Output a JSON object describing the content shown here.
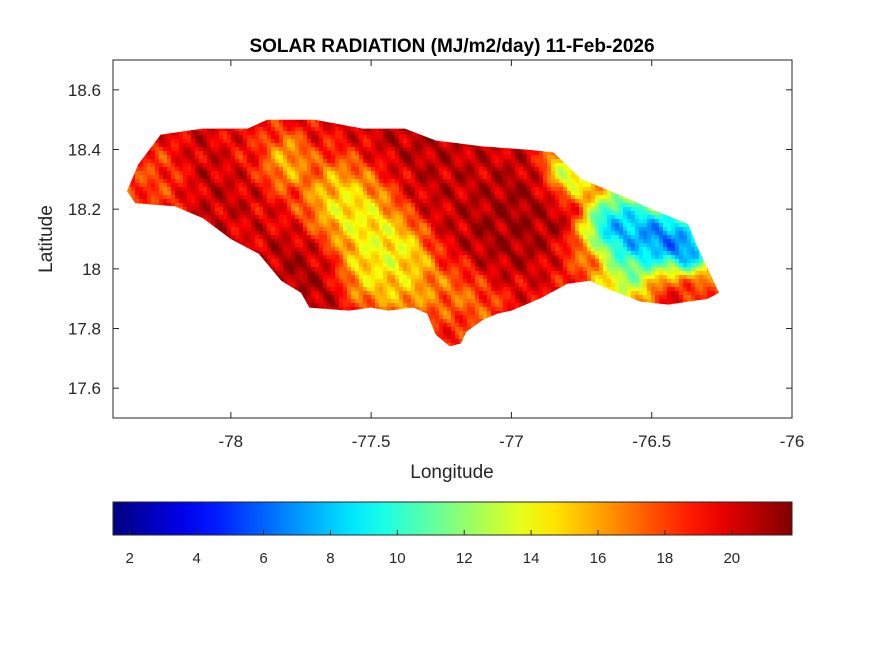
{
  "chart_data": {
    "type": "heatmap",
    "title": "SOLAR RADIATION (MJ/m2/day) 11-Feb-2026",
    "xlabel": "Longitude",
    "ylabel": "Latitude",
    "xlim": [
      -78.42,
      -76.0
    ],
    "ylim": [
      17.5,
      18.7
    ],
    "xticks": [
      -78,
      -77.5,
      -77,
      -76.5,
      -76
    ],
    "yticks": [
      17.6,
      17.8,
      18,
      18.2,
      18.4,
      18.6
    ],
    "colorbar": {
      "colormap": "jet",
      "range": [
        1.5,
        21.8
      ],
      "ticks": [
        2,
        4,
        6,
        8,
        10,
        12,
        14,
        16,
        18,
        20
      ],
      "location": "south"
    },
    "grid": false,
    "region_outline": [
      [
        -78.37,
        18.26
      ],
      [
        -78.33,
        18.35
      ],
      [
        -78.25,
        18.45
      ],
      [
        -78.1,
        18.47
      ],
      [
        -77.94,
        18.47
      ],
      [
        -77.87,
        18.5
      ],
      [
        -77.7,
        18.5
      ],
      [
        -77.53,
        18.47
      ],
      [
        -77.38,
        18.47
      ],
      [
        -77.27,
        18.43
      ],
      [
        -77.1,
        18.41
      ],
      [
        -76.95,
        18.4
      ],
      [
        -76.85,
        18.39
      ],
      [
        -76.75,
        18.3
      ],
      [
        -76.62,
        18.25
      ],
      [
        -76.5,
        18.2
      ],
      [
        -76.37,
        18.15
      ],
      [
        -76.34,
        18.08
      ],
      [
        -76.31,
        18.02
      ],
      [
        -76.26,
        17.92
      ],
      [
        -76.3,
        17.9
      ],
      [
        -76.44,
        17.88
      ],
      [
        -76.54,
        17.89
      ],
      [
        -76.65,
        17.93
      ],
      [
        -76.72,
        17.96
      ],
      [
        -76.8,
        17.95
      ],
      [
        -76.9,
        17.9
      ],
      [
        -77.0,
        17.86
      ],
      [
        -77.05,
        17.85
      ],
      [
        -77.1,
        17.83
      ],
      [
        -77.16,
        17.79
      ],
      [
        -77.18,
        17.75
      ],
      [
        -77.22,
        17.74
      ],
      [
        -77.27,
        17.78
      ],
      [
        -77.3,
        17.85
      ],
      [
        -77.35,
        17.87
      ],
      [
        -77.44,
        17.86
      ],
      [
        -77.5,
        17.87
      ],
      [
        -77.58,
        17.86
      ],
      [
        -77.72,
        17.87
      ],
      [
        -77.75,
        17.92
      ],
      [
        -77.82,
        17.96
      ],
      [
        -77.9,
        18.05
      ],
      [
        -78.0,
        18.1
      ],
      [
        -78.1,
        18.17
      ],
      [
        -78.2,
        18.21
      ],
      [
        -78.34,
        18.22
      ]
    ],
    "value_features": [
      {
        "lon": -77.72,
        "lat": 18.0,
        "value": 21.5,
        "spread": 0.09
      },
      {
        "lon": -78.05,
        "lat": 18.32,
        "value": 20.8,
        "spread": 0.1
      },
      {
        "lon": -77.95,
        "lat": 18.4,
        "value": 18.5,
        "spread": 0.07
      },
      {
        "lon": -77.35,
        "lat": 18.38,
        "value": 21.0,
        "spread": 0.12
      },
      {
        "lon": -77.2,
        "lat": 18.3,
        "value": 20.5,
        "spread": 0.1
      },
      {
        "lon": -77.0,
        "lat": 18.18,
        "value": 21.6,
        "spread": 0.09
      },
      {
        "lon": -77.1,
        "lat": 18.05,
        "value": 21.4,
        "spread": 0.08
      },
      {
        "lon": -76.88,
        "lat": 18.22,
        "value": 21.0,
        "spread": 0.07
      },
      {
        "lon": -77.55,
        "lat": 18.18,
        "value": 12.5,
        "spread": 0.1
      },
      {
        "lon": -77.42,
        "lat": 18.05,
        "value": 13.0,
        "spread": 0.07
      },
      {
        "lon": -77.52,
        "lat": 18.0,
        "value": 14.0,
        "spread": 0.06
      },
      {
        "lon": -77.38,
        "lat": 17.95,
        "value": 15.0,
        "spread": 0.06
      },
      {
        "lon": -77.18,
        "lat": 17.92,
        "value": 16.0,
        "spread": 0.08
      },
      {
        "lon": -77.2,
        "lat": 17.8,
        "value": 19.0,
        "spread": 0.05
      },
      {
        "lon": -77.82,
        "lat": 18.36,
        "value": 14.5,
        "spread": 0.05
      },
      {
        "lon": -78.25,
        "lat": 18.3,
        "value": 17.5,
        "spread": 0.07
      },
      {
        "lon": -76.8,
        "lat": 18.31,
        "value": 10.0,
        "spread": 0.05
      },
      {
        "lon": -76.62,
        "lat": 18.12,
        "value": 5.0,
        "spread": 0.07
      },
      {
        "lon": -76.48,
        "lat": 18.09,
        "value": 3.5,
        "spread": 0.06
      },
      {
        "lon": -76.38,
        "lat": 18.06,
        "value": 4.0,
        "spread": 0.05
      },
      {
        "lon": -76.55,
        "lat": 18.0,
        "value": 9.5,
        "spread": 0.06
      },
      {
        "lon": -76.62,
        "lat": 17.95,
        "value": 13.0,
        "spread": 0.05
      },
      {
        "lon": -76.45,
        "lat": 17.93,
        "value": 19.5,
        "spread": 0.06
      },
      {
        "lon": -76.3,
        "lat": 17.93,
        "value": 17.5,
        "spread": 0.04
      },
      {
        "lon": -76.72,
        "lat": 18.02,
        "value": 18.0,
        "spread": 0.05
      }
    ],
    "background_value": 19.5
  }
}
